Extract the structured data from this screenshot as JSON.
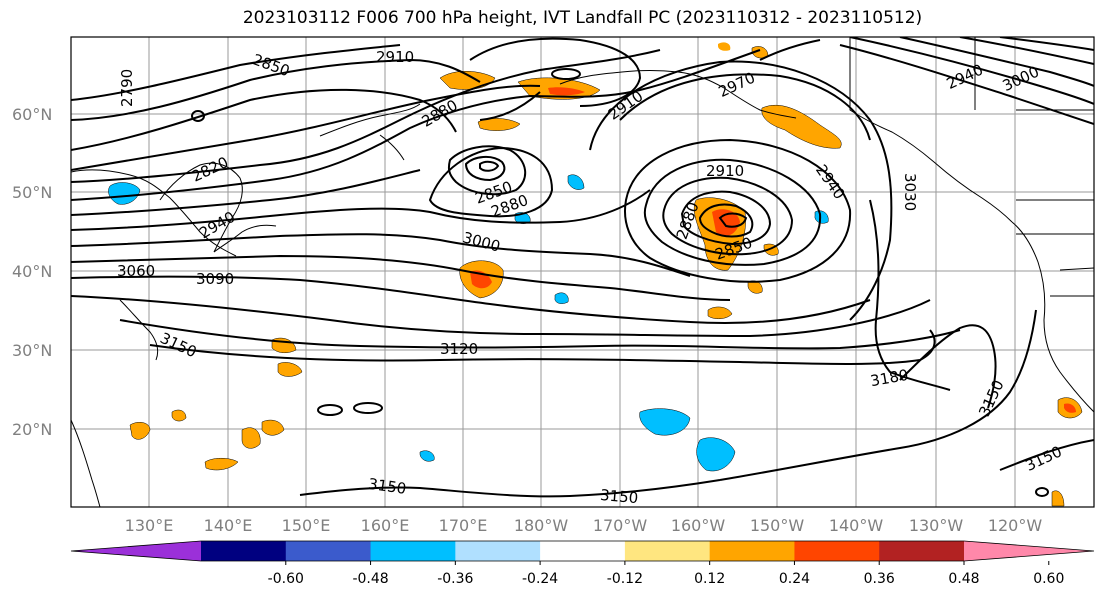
{
  "title": "2023103112 F006 700 hPa height, IVT Landfall PC (2023110312 - 2023110512)",
  "lat_labels": [
    "60°N",
    "50°N",
    "40°N",
    "30°N",
    "20°N"
  ],
  "lon_labels": [
    "130°E",
    "140°E",
    "150°E",
    "160°E",
    "170°E",
    "180°W",
    "170°W",
    "160°W",
    "150°W",
    "140°W",
    "130°W",
    "120°W"
  ],
  "contour_labels": [
    "2790",
    "2850",
    "2910",
    "2880",
    "2820",
    "2940",
    "3060",
    "3090",
    "3000",
    "2850",
    "2880",
    "2910",
    "2970",
    "2910",
    "2880",
    "2850",
    "2940",
    "3030",
    "3150",
    "3120",
    "3180",
    "3150",
    "3150",
    "3150",
    "3150",
    "2940",
    "3000"
  ],
  "colorbar": {
    "ticks": [
      "-0.60",
      "-0.48",
      "-0.36",
      "-0.24",
      "-0.12",
      "0.12",
      "0.24",
      "0.36",
      "0.48",
      "0.60"
    ],
    "colors": [
      "#9b30d9",
      "#000080",
      "#3b5bcc",
      "#00bfff",
      "#b0e0ff",
      "#ffffff",
      "#ffe680",
      "#ffa500",
      "#ff4500",
      "#b22222",
      "#ff88aa"
    ]
  },
  "colors": {
    "land": "#000000",
    "grid": "#808080",
    "contour": "#000000"
  }
}
